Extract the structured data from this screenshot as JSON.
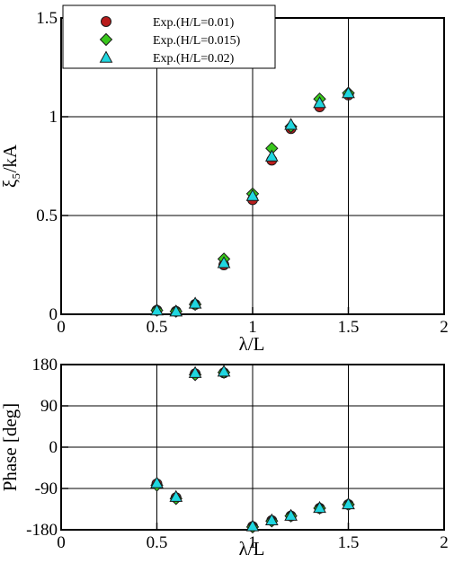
{
  "colors": {
    "circle": "#b81c1c",
    "diamond": "#39c71c",
    "triangle": "#1fd6df"
  },
  "chart_data": [
    {
      "type": "scatter",
      "xlabel": "λ/L",
      "ylabel": "ξ₅/kA",
      "xlim": [
        0,
        2
      ],
      "ylim": [
        0,
        1.5
      ],
      "x_ticks": [
        "0",
        "0.5",
        "1",
        "1.5",
        "2"
      ],
      "y_ticks": [
        "0",
        "0.5",
        "1",
        "1.5"
      ],
      "grid": true,
      "legend_position": "top-left",
      "series": [
        {
          "name": "Exp.(H/L=0.01)",
          "marker": "circle",
          "x": [
            0.5,
            0.6,
            0.7,
            0.85,
            1.0,
            1.1,
            1.2,
            1.35,
            1.5
          ],
          "y": [
            0.02,
            0.015,
            0.05,
            0.25,
            0.58,
            0.78,
            0.94,
            1.05,
            1.11
          ]
        },
        {
          "name": "Exp.(H/L=0.015)",
          "marker": "diamond",
          "x": [
            0.5,
            0.6,
            0.7,
            0.85,
            1.0,
            1.1,
            1.2,
            1.35,
            1.5
          ],
          "y": [
            0.02,
            0.015,
            0.05,
            0.28,
            0.61,
            0.84,
            0.95,
            1.09,
            1.12
          ]
        },
        {
          "name": "Exp.(H/L=0.02)",
          "marker": "triangle",
          "x": [
            0.5,
            0.6,
            0.7,
            0.85,
            1.0,
            1.1,
            1.2,
            1.35,
            1.5
          ],
          "y": [
            0.02,
            0.015,
            0.055,
            0.26,
            0.6,
            0.8,
            0.96,
            1.07,
            1.12
          ]
        }
      ]
    },
    {
      "type": "scatter",
      "xlabel": "λ/L",
      "ylabel": "Phase [deg]",
      "xlim": [
        0,
        2
      ],
      "ylim": [
        -180,
        180
      ],
      "x_ticks": [
        "0",
        "0.5",
        "1",
        "1.5",
        "2"
      ],
      "y_ticks": [
        "-180",
        "-90",
        "0",
        "90",
        "180"
      ],
      "grid": true,
      "series": [
        {
          "name": "Exp.(H/L=0.01)",
          "marker": "circle",
          "x": [
            0.5,
            0.6,
            0.7,
            0.85,
            1.0,
            1.1,
            1.2,
            1.35,
            1.5
          ],
          "y": [
            -80,
            -110,
            160,
            162,
            -173,
            -160,
            -150,
            -133,
            -125
          ]
        },
        {
          "name": "Exp.(H/L=0.015)",
          "marker": "diamond",
          "x": [
            0.5,
            0.6,
            0.7,
            0.85,
            1.0,
            1.1,
            1.2,
            1.35,
            1.5
          ],
          "y": [
            -83,
            -112,
            158,
            163,
            -174,
            -161,
            -150,
            -133,
            -125
          ]
        },
        {
          "name": "Exp.(H/L=0.02)",
          "marker": "triangle",
          "x": [
            0.5,
            0.6,
            0.7,
            0.85,
            1.0,
            1.1,
            1.2,
            1.35,
            1.5
          ],
          "y": [
            -78,
            -108,
            162,
            165,
            -172,
            -159,
            -149,
            -132,
            -124
          ]
        }
      ]
    }
  ]
}
